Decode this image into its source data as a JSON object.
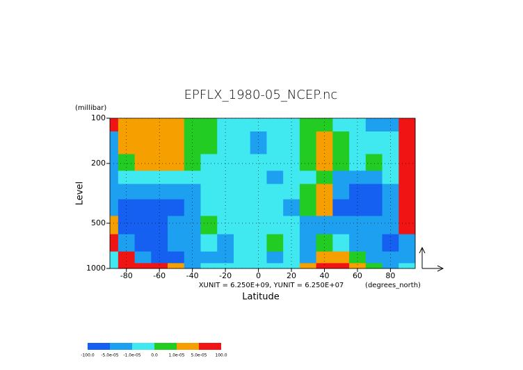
{
  "chart_data": {
    "type": "contour",
    "title": "EPFLX_1980-05_NCEP.nc",
    "y_unit": "(millibar)",
    "ylabel": "Level",
    "xlabel": "Latitude",
    "x_unit": "(degrees_north)",
    "annotation": "XUNIT = 6.250E+09, YUNIT = 6.250E+07",
    "x": [
      -90,
      -80,
      -70,
      -60,
      -50,
      -40,
      -30,
      -20,
      -10,
      0,
      10,
      20,
      30,
      40,
      50,
      60,
      70,
      80,
      90
    ],
    "y": [
      100,
      150,
      200,
      250,
      300,
      400,
      500,
      700,
      850,
      1000
    ],
    "xlim": [
      -90,
      95
    ],
    "ylim": [
      100,
      1000
    ],
    "log_y": true,
    "grid": true,
    "xticks": [
      -80,
      -60,
      -40,
      -20,
      0,
      20,
      40,
      60,
      80
    ],
    "yticks": [
      100,
      200,
      500,
      1000
    ],
    "levels": [
      {
        "value": -100,
        "label": "-100.0"
      },
      {
        "value": -5e-05,
        "label": "-5.0e-05"
      },
      {
        "value": -1e-05,
        "label": "-1.0e-05"
      },
      {
        "value": 0,
        "label": "0.0"
      },
      {
        "value": 1e-05,
        "label": "1.0e-05"
      },
      {
        "value": 5e-05,
        "label": "5.0e-05"
      },
      {
        "value": 100,
        "label": "100.0"
      }
    ],
    "colors": [
      "#1560f0",
      "#1ea0f0",
      "#40e8f0",
      "#22cc22",
      "#f5a000",
      "#f01414"
    ],
    "z": [
      [
        0.0001,
        3e-05,
        3e-05,
        3e-05,
        3e-05,
        5e-06,
        5e-06,
        -5e-06,
        -5e-06,
        -5e-06,
        -5e-06,
        -5e-06,
        5e-06,
        5e-06,
        -5e-06,
        -5e-06,
        -3e-05,
        -3e-05,
        0.0001
      ],
      [
        -3e-05,
        3e-05,
        3e-05,
        3e-05,
        3e-05,
        5e-06,
        5e-06,
        -5e-06,
        -5e-06,
        -3e-05,
        -5e-06,
        -5e-06,
        5e-06,
        3e-05,
        5e-06,
        -5e-06,
        -5e-06,
        -5e-06,
        0.0001
      ],
      [
        -3e-05,
        5e-06,
        3e-05,
        3e-05,
        3e-05,
        5e-06,
        -5e-06,
        -5e-06,
        -5e-06,
        -5e-06,
        -5e-06,
        -5e-06,
        5e-06,
        3e-05,
        5e-06,
        -5e-06,
        5e-06,
        -5e-06,
        0.0001
      ],
      [
        -3e-05,
        -5e-06,
        -5e-06,
        -5e-06,
        -5e-06,
        -5e-06,
        -5e-06,
        -5e-06,
        -5e-06,
        -5e-06,
        -3e-05,
        -5e-06,
        -5e-06,
        5e-06,
        -3e-05,
        -3e-05,
        -3e-05,
        -5e-06,
        0.0001
      ],
      [
        -3e-05,
        -3e-05,
        -3e-05,
        -3e-05,
        -3e-05,
        -3e-05,
        -5e-06,
        -5e-06,
        -5e-06,
        -5e-06,
        -5e-06,
        -5e-06,
        5e-06,
        3e-05,
        -3e-05,
        -0.0001,
        -0.0001,
        -3e-05,
        0.0001
      ],
      [
        -3e-05,
        -0.0001,
        -0.0001,
        -0.0001,
        -0.0001,
        -3e-05,
        -5e-06,
        -5e-06,
        -5e-06,
        -5e-06,
        -5e-06,
        -3e-05,
        5e-06,
        3e-05,
        -0.0001,
        -0.0001,
        -0.0001,
        -3e-05,
        0.0001
      ],
      [
        3e-05,
        -0.0001,
        -0.0001,
        -0.0001,
        -3e-05,
        -3e-05,
        5e-06,
        -5e-06,
        -5e-06,
        -5e-06,
        -5e-06,
        -5e-06,
        -3e-05,
        -3e-05,
        -3e-05,
        -3e-05,
        -3e-05,
        -3e-05,
        0.0001
      ],
      [
        0.0001,
        -3e-05,
        -0.0001,
        -0.0001,
        -3e-05,
        -3e-05,
        -5e-06,
        -3e-05,
        -5e-06,
        -5e-06,
        5e-06,
        -5e-06,
        -3e-05,
        5e-06,
        -5e-06,
        -3e-05,
        -3e-05,
        -0.0001,
        -3e-05
      ],
      [
        -5e-06,
        0.0001,
        -3e-05,
        -0.0001,
        -0.0001,
        -3e-05,
        -3e-05,
        -3e-05,
        -5e-06,
        -5e-06,
        -3e-05,
        -5e-06,
        -3e-05,
        3e-05,
        3e-05,
        5e-06,
        -3e-05,
        -3e-05,
        -3e-05
      ],
      [
        -5e-06,
        0.0001,
        0.0001,
        0.0001,
        3e-05,
        -3e-05,
        -5e-06,
        -5e-06,
        -5e-06,
        -5e-06,
        -5e-06,
        -5e-06,
        3e-05,
        0.0001,
        0.0001,
        3e-05,
        5e-06,
        -3e-05,
        -5e-06
      ]
    ]
  }
}
